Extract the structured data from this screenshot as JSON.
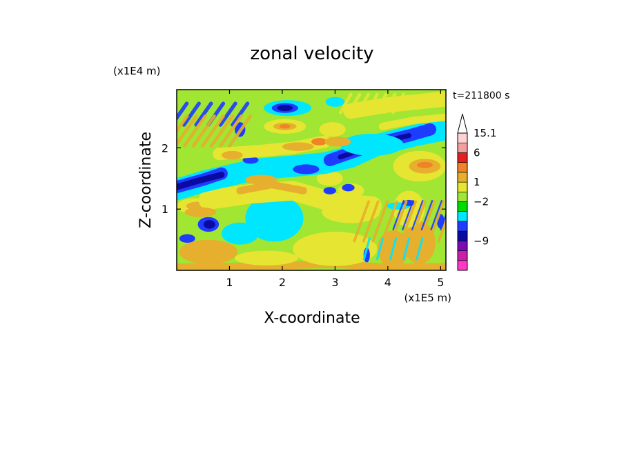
{
  "chart_data": {
    "type": "heatmap",
    "title": "zonal velocity",
    "xlabel": "X-coordinate",
    "ylabel": "Z-coordinate",
    "x_unit_label": "(x1E5 m)",
    "y_unit_label": "(x1E4 m)",
    "time_label": "t=211800 s",
    "xlim": [
      0,
      5.1
    ],
    "ylim": [
      0,
      2.95
    ],
    "x_ticks": [
      {
        "value": 1,
        "label": "1"
      },
      {
        "value": 2,
        "label": "2"
      },
      {
        "value": 3,
        "label": "3"
      },
      {
        "value": 4,
        "label": "4"
      },
      {
        "value": 5,
        "label": "5"
      }
    ],
    "y_ticks": [
      {
        "value": 1,
        "label": "1"
      },
      {
        "value": 2,
        "label": "2"
      }
    ],
    "colorbar": {
      "bins": [
        {
          "color": "#ff38c8"
        },
        {
          "color": "#c81ea8"
        },
        {
          "color": "#7a0ab4"
        },
        {
          "color": "#0a0aa0"
        },
        {
          "color": "#1e3cff"
        },
        {
          "color": "#00e6ff"
        },
        {
          "color": "#00dc00"
        },
        {
          "color": "#a0e632"
        },
        {
          "color": "#e6e632"
        },
        {
          "color": "#e6af2d"
        },
        {
          "color": "#f08228"
        },
        {
          "color": "#e61e1e"
        },
        {
          "color": "#f0a0a0"
        },
        {
          "color": "#ffd2d2"
        }
      ],
      "labels": [
        {
          "value": "15.1",
          "bin": 13
        },
        {
          "value": "6",
          "bin": 11
        },
        {
          "value": "1",
          "bin": 8
        },
        {
          "value": "-2",
          "bin": 6
        },
        {
          "value": "-9",
          "bin": 2
        }
      ],
      "label_display": [
        "15.1",
        "6",
        "1",
        "−2",
        "−9"
      ]
    },
    "field": {
      "background_color": "#a0e632",
      "regions": [
        {
          "kind": "band",
          "color": "#e6af2d",
          "points": [
            [
              0,
              0.05
            ],
            [
              1,
              0.06
            ],
            [
              2,
              0.08
            ],
            [
              3,
              0.1
            ],
            [
              4,
              0.05
            ],
            [
              5.1,
              0.06
            ]
          ],
          "thickness": 0.12
        },
        {
          "kind": "blob",
          "color": "#e6af2d",
          "cx": 0.6,
          "cy": 0.3,
          "rx": 0.55,
          "ry": 0.2
        },
        {
          "kind": "blob",
          "color": "#00e6ff",
          "cx": 1.85,
          "cy": 0.85,
          "rx": 0.55,
          "ry": 0.38
        },
        {
          "kind": "blob",
          "color": "#00e6ff",
          "cx": 1.2,
          "cy": 0.6,
          "rx": 0.35,
          "ry": 0.18
        },
        {
          "kind": "blob",
          "color": "#e6e632",
          "cx": 3.0,
          "cy": 0.35,
          "rx": 0.8,
          "ry": 0.28
        },
        {
          "kind": "blob",
          "color": "#e6e632",
          "cx": 3.3,
          "cy": 0.95,
          "rx": 0.55,
          "ry": 0.18
        },
        {
          "kind": "blob",
          "color": "#e6e632",
          "cx": 0.35,
          "cy": 1.05,
          "rx": 0.35,
          "ry": 0.13
        },
        {
          "kind": "blob",
          "color": "#e6af2d",
          "cx": 0.4,
          "cy": 1.05,
          "rx": 0.22,
          "ry": 0.07
        },
        {
          "kind": "band",
          "color": "#e6e632",
          "points": [
            [
              0.6,
              1.15
            ],
            [
              1.4,
              1.25
            ],
            [
              2.2,
              1.3
            ],
            [
              3.0,
              1.1
            ],
            [
              3.7,
              1.05
            ]
          ],
          "thickness": 0.32
        },
        {
          "kind": "band",
          "color": "#e6af2d",
          "points": [
            [
              1.2,
              1.3
            ],
            [
              1.8,
              1.4
            ],
            [
              2.4,
              1.3
            ]
          ],
          "thickness": 0.12
        },
        {
          "kind": "blob",
          "color": "#e6e632",
          "cx": 2.9,
          "cy": 1.5,
          "rx": 0.25,
          "ry": 0.12
        },
        {
          "kind": "blob",
          "color": "#e6e632",
          "cx": 3.3,
          "cy": 1.3,
          "rx": 0.25,
          "ry": 0.12
        },
        {
          "kind": "band",
          "color": "#00e6ff",
          "points": [
            [
              0,
              1.32
            ],
            [
              0.5,
              1.45
            ],
            [
              1.0,
              1.55
            ],
            [
              1.5,
              1.65
            ],
            [
              2.2,
              1.7
            ],
            [
              2.8,
              1.75
            ],
            [
              3.3,
              1.85
            ],
            [
              3.8,
              2.05
            ],
            [
              4.5,
              2.2
            ],
            [
              5.1,
              2.3
            ]
          ],
          "thickness": 0.35
        },
        {
          "kind": "band",
          "color": "#1e3cff",
          "points": [
            [
              0,
              1.36
            ],
            [
              0.5,
              1.48
            ],
            [
              0.85,
              1.58
            ]
          ],
          "thickness": 0.2
        },
        {
          "kind": "band",
          "color": "#0a0aa0",
          "points": [
            [
              0,
              1.36
            ],
            [
              0.4,
              1.46
            ],
            [
              0.85,
              1.56
            ]
          ],
          "thickness": 0.1
        },
        {
          "kind": "band",
          "color": "#1e3cff",
          "points": [
            [
              2.9,
              1.8
            ],
            [
              3.4,
              1.95
            ],
            [
              3.9,
              2.1
            ],
            [
              4.4,
              2.2
            ],
            [
              4.8,
              2.3
            ]
          ],
          "thickness": 0.2
        },
        {
          "kind": "band",
          "color": "#0a0aa0",
          "points": [
            [
              3.1,
              1.85
            ],
            [
              3.5,
              1.97
            ],
            [
              4.0,
              2.12
            ],
            [
              4.4,
              2.2
            ]
          ],
          "thickness": 0.08
        },
        {
          "kind": "blob",
          "color": "#1e3cff",
          "cx": 2.45,
          "cy": 1.65,
          "rx": 0.25,
          "ry": 0.08
        },
        {
          "kind": "blob",
          "color": "#1e3cff",
          "cx": 1.4,
          "cy": 1.8,
          "rx": 0.15,
          "ry": 0.06
        },
        {
          "kind": "band",
          "color": "#e6e632",
          "points": [
            [
              0.8,
              1.9
            ],
            [
              1.6,
              1.95
            ],
            [
              2.2,
              2.0
            ],
            [
              2.8,
              2.1
            ]
          ],
          "thickness": 0.2
        },
        {
          "kind": "blob",
          "color": "#e6af2d",
          "cx": 1.05,
          "cy": 1.88,
          "rx": 0.2,
          "ry": 0.07
        },
        {
          "kind": "blob",
          "color": "#e6af2d",
          "cx": 2.3,
          "cy": 2.02,
          "rx": 0.3,
          "ry": 0.07
        },
        {
          "kind": "blob",
          "color": "#f08228",
          "cx": 2.7,
          "cy": 2.1,
          "rx": 0.15,
          "ry": 0.06
        },
        {
          "kind": "blob",
          "color": "#e6e632",
          "cx": 2.05,
          "cy": 2.35,
          "rx": 0.4,
          "ry": 0.12
        },
        {
          "kind": "blob",
          "color": "#e6af2d",
          "cx": 2.05,
          "cy": 2.35,
          "rx": 0.22,
          "ry": 0.06
        },
        {
          "kind": "blob",
          "color": "#f08228",
          "cx": 2.05,
          "cy": 2.35,
          "rx": 0.1,
          "ry": 0.035
        },
        {
          "kind": "blob",
          "color": "#00e6ff",
          "cx": 2.1,
          "cy": 2.65,
          "rx": 0.45,
          "ry": 0.13
        },
        {
          "kind": "blob",
          "color": "#1e3cff",
          "cx": 2.05,
          "cy": 2.65,
          "rx": 0.25,
          "ry": 0.08
        },
        {
          "kind": "blob",
          "color": "#0a0aa0",
          "cx": 2.05,
          "cy": 2.65,
          "rx": 0.15,
          "ry": 0.05
        },
        {
          "kind": "band",
          "color": "#e6e632",
          "points": [
            [
              3.3,
              2.6
            ],
            [
              4.0,
              2.7
            ],
            [
              5.1,
              2.8
            ]
          ],
          "thickness": 0.25
        },
        {
          "kind": "band",
          "color": "#e6e632",
          "points": [
            [
              3.9,
              2.35
            ],
            [
              4.5,
              2.45
            ],
            [
              5.1,
              2.5
            ]
          ],
          "thickness": 0.12
        },
        {
          "kind": "blob",
          "color": "#e6e632",
          "cx": 4.6,
          "cy": 1.7,
          "rx": 0.5,
          "ry": 0.25
        },
        {
          "kind": "blob",
          "color": "#e6af2d",
          "cx": 4.7,
          "cy": 1.7,
          "rx": 0.3,
          "ry": 0.12
        },
        {
          "kind": "blob",
          "color": "#f08228",
          "cx": 4.7,
          "cy": 1.72,
          "rx": 0.15,
          "ry": 0.05
        },
        {
          "kind": "blob",
          "color": "#e6af2d",
          "cx": 4.1,
          "cy": 0.35,
          "rx": 0.3,
          "ry": 0.3
        },
        {
          "kind": "blob",
          "color": "#e6af2d",
          "cx": 4.6,
          "cy": 0.45,
          "rx": 0.3,
          "ry": 0.35
        },
        {
          "kind": "blob",
          "color": "#e6e632",
          "cx": 4.4,
          "cy": 1.0,
          "rx": 0.3,
          "ry": 0.3
        },
        {
          "kind": "blob",
          "color": "#00e6ff",
          "cx": 4.2,
          "cy": 1.05,
          "rx": 0.22,
          "ry": 0.06
        },
        {
          "kind": "blob",
          "color": "#1e3cff",
          "cx": 4.4,
          "cy": 1.1,
          "rx": 0.12,
          "ry": 0.05
        },
        {
          "kind": "blob",
          "color": "#1e3cff",
          "cx": 5.0,
          "cy": 0.8,
          "rx": 0.07,
          "ry": 0.12
        },
        {
          "kind": "blob",
          "color": "#1e3cff",
          "cx": 3.6,
          "cy": 0.25,
          "rx": 0.06,
          "ry": 0.12
        },
        {
          "kind": "blob",
          "color": "#1e3cff",
          "cx": 0.6,
          "cy": 0.75,
          "rx": 0.2,
          "ry": 0.12
        },
        {
          "kind": "blob",
          "color": "#0a0aa0",
          "cx": 0.62,
          "cy": 0.75,
          "rx": 0.11,
          "ry": 0.07
        },
        {
          "kind": "blob",
          "color": "#1e3cff",
          "cx": 0.2,
          "cy": 0.52,
          "rx": 0.15,
          "ry": 0.07
        },
        {
          "kind": "blob",
          "color": "#00e6ff",
          "cx": 1.3,
          "cy": 0.55,
          "rx": 0.2,
          "ry": 0.1
        },
        {
          "kind": "blob",
          "color": "#e6e632",
          "cx": 1.7,
          "cy": 0.2,
          "rx": 0.6,
          "ry": 0.12
        },
        {
          "kind": "blob",
          "color": "#e6af2d",
          "cx": 0.45,
          "cy": 0.95,
          "rx": 0.3,
          "ry": 0.08
        },
        {
          "kind": "blob",
          "color": "#00e6ff",
          "cx": 3.7,
          "cy": 2.05,
          "rx": 0.6,
          "ry": 0.18
        },
        {
          "kind": "blob",
          "color": "#e6af2d",
          "cx": 3.05,
          "cy": 2.1,
          "rx": 0.25,
          "ry": 0.08
        },
        {
          "kind": "blob",
          "color": "#e6e632",
          "cx": 2.95,
          "cy": 2.3,
          "rx": 0.25,
          "ry": 0.12
        },
        {
          "kind": "blob",
          "color": "#00e6ff",
          "cx": 3.0,
          "cy": 2.75,
          "rx": 0.18,
          "ry": 0.08
        },
        {
          "kind": "blob",
          "color": "#1e3cff",
          "cx": 2.9,
          "cy": 1.3,
          "rx": 0.12,
          "ry": 0.06
        },
        {
          "kind": "blob",
          "color": "#1e3cff",
          "cx": 3.25,
          "cy": 1.35,
          "rx": 0.12,
          "ry": 0.06
        },
        {
          "kind": "blob",
          "color": "#1e3cff",
          "cx": 1.2,
          "cy": 2.3,
          "rx": 0.1,
          "ry": 0.12
        },
        {
          "kind": "blob",
          "color": "#e6af2d",
          "cx": 1.6,
          "cy": 1.48,
          "rx": 0.3,
          "ry": 0.08
        },
        {
          "kind": "stripes",
          "color": "#1e3cff",
          "x0": 0.05,
          "x1": 1.2,
          "y0": 2.2,
          "y1": 2.9,
          "count": 6,
          "angle": 55,
          "width": 0.07
        },
        {
          "kind": "stripes",
          "color": "#e6af2d",
          "x0": 0.0,
          "x1": 1.2,
          "y0": 1.6,
          "y1": 2.95,
          "count": 8,
          "angle": 55,
          "width": 0.06
        },
        {
          "kind": "stripes",
          "color": "#e6af2d",
          "x0": 3.5,
          "x1": 5.1,
          "y0": 0.1,
          "y1": 1.5,
          "count": 10,
          "angle": 70,
          "width": 0.05
        },
        {
          "kind": "stripes",
          "color": "#1e3cff",
          "x0": 4.2,
          "x1": 5.1,
          "y0": 0.3,
          "y1": 1.5,
          "count": 6,
          "angle": 70,
          "width": 0.03
        },
        {
          "kind": "stripes",
          "color": "#00e6ff",
          "x0": 3.6,
          "x1": 4.6,
          "y0": 0.1,
          "y1": 0.6,
          "count": 5,
          "angle": 75,
          "width": 0.04
        },
        {
          "kind": "stripes",
          "color": "#e6e632",
          "x0": 3.2,
          "x1": 4.2,
          "y0": 2.5,
          "y1": 2.95,
          "count": 7,
          "angle": 60,
          "width": 0.06
        }
      ]
    }
  }
}
